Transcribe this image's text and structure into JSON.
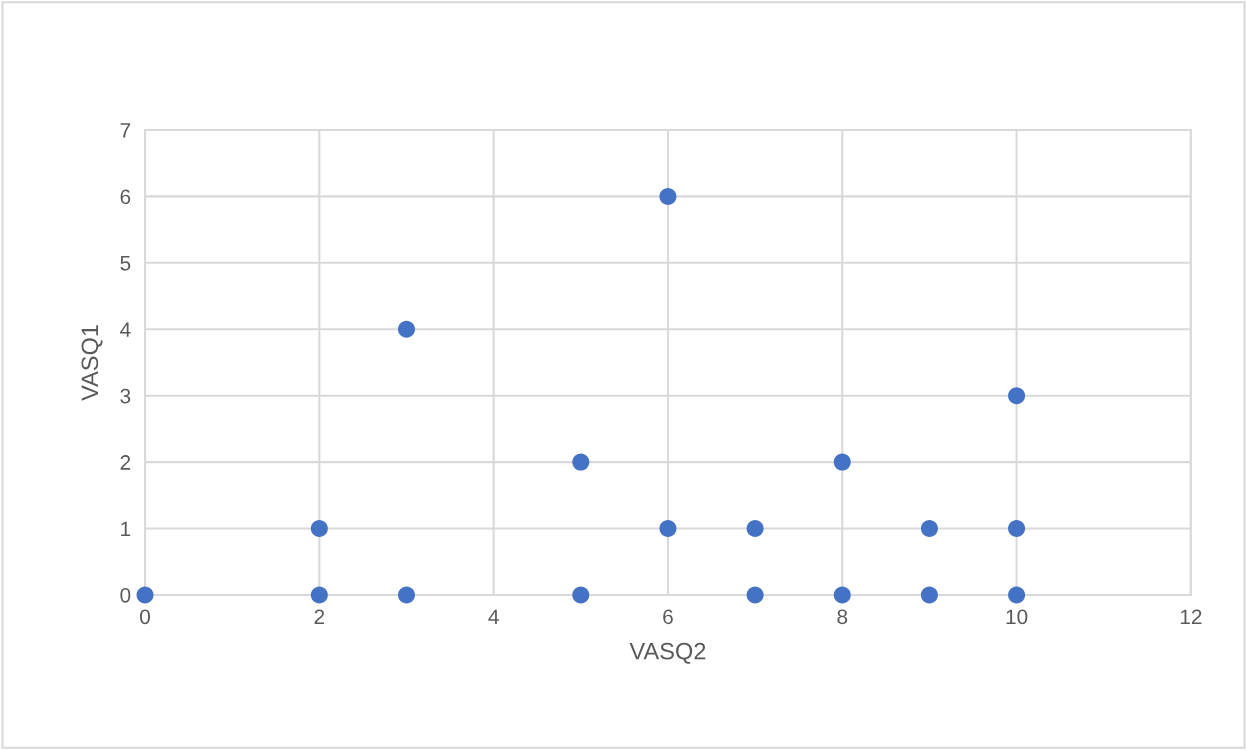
{
  "chart_data": {
    "type": "scatter",
    "xlabel": "VASQ2",
    "ylabel": "VASQ1",
    "x": [
      0,
      2,
      2,
      3,
      3,
      5,
      5,
      6,
      6,
      7,
      7,
      8,
      8,
      9,
      9,
      10,
      10,
      10
    ],
    "series": [
      {
        "color": "#4472c4",
        "values": [
          0,
          1,
          0,
          4,
          0,
          2,
          0,
          6,
          1,
          1,
          0,
          2,
          0,
          1,
          0,
          3,
          1,
          0
        ]
      }
    ],
    "xlim": [
      0,
      12
    ],
    "xticks": [
      0,
      2,
      4,
      6,
      8,
      10,
      12
    ],
    "ylim": [
      0,
      7
    ],
    "yticks": [
      0,
      1,
      2,
      3,
      4,
      5,
      6,
      7
    ],
    "grid": true,
    "marker": "circle",
    "legend": false
  }
}
